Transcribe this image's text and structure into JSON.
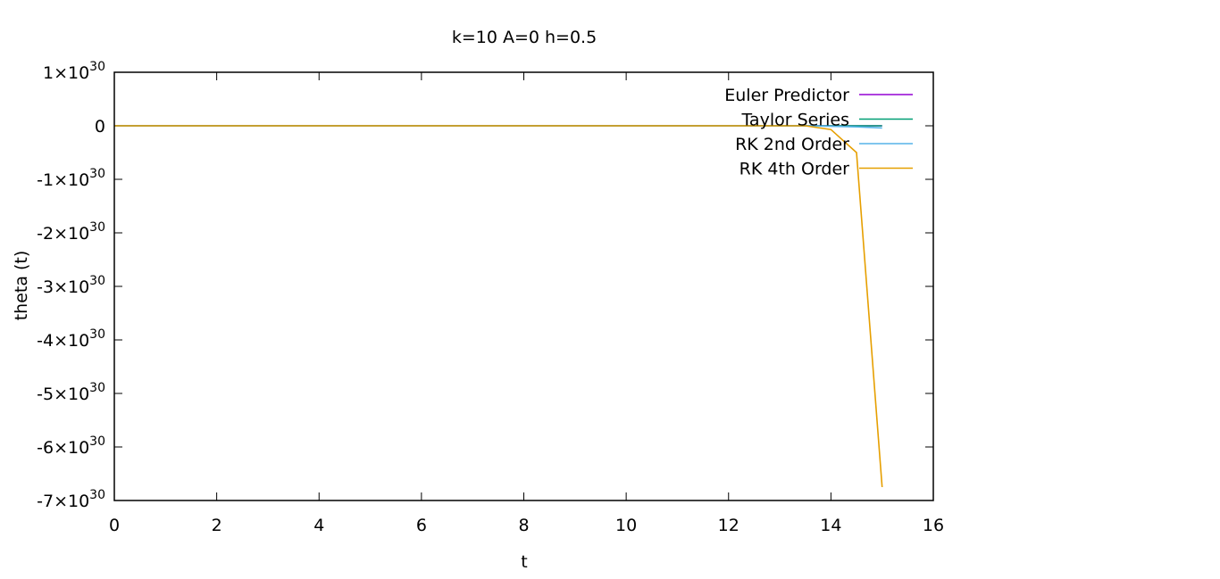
{
  "chart_data": {
    "type": "line",
    "title": "k=10 A=0 h=0.5",
    "xlabel": "t",
    "ylabel": "theta (t)",
    "xlim": [
      0,
      16
    ],
    "ylim": [
      -7e+30,
      1e+30
    ],
    "x_ticks": [
      {
        "value": 0,
        "label": "0"
      },
      {
        "value": 2,
        "label": "2"
      },
      {
        "value": 4,
        "label": "4"
      },
      {
        "value": 6,
        "label": "6"
      },
      {
        "value": 8,
        "label": "8"
      },
      {
        "value": 10,
        "label": "10"
      },
      {
        "value": 12,
        "label": "12"
      },
      {
        "value": 14,
        "label": "14"
      },
      {
        "value": 16,
        "label": "16"
      }
    ],
    "y_ticks": [
      {
        "value": 1e+30,
        "mantissa": "1",
        "exponent": "30"
      },
      {
        "value": 0,
        "mantissa": "0",
        "exponent": ""
      },
      {
        "value": -1e+30,
        "mantissa": "-1",
        "exponent": "30"
      },
      {
        "value": -2e+30,
        "mantissa": "-2",
        "exponent": "30"
      },
      {
        "value": -3e+30,
        "mantissa": "-3",
        "exponent": "30"
      },
      {
        "value": -4e+30,
        "mantissa": "-4",
        "exponent": "30"
      },
      {
        "value": -5e+30,
        "mantissa": "-5",
        "exponent": "30"
      },
      {
        "value": -6e+30,
        "mantissa": "-6",
        "exponent": "30"
      },
      {
        "value": -7e+30,
        "mantissa": "-7",
        "exponent": "30"
      }
    ],
    "legend_position": "top-right",
    "series": [
      {
        "name": "Euler Predictor",
        "color": "#9400d3",
        "x": [
          0,
          15
        ],
        "y": [
          0,
          0
        ]
      },
      {
        "name": "Taylor Series",
        "color": "#009e73",
        "x": [
          0,
          15
        ],
        "y": [
          0,
          0
        ]
      },
      {
        "name": "RK 2nd Order",
        "color": "#56b4e9",
        "x": [
          0,
          13.5,
          14,
          14.5,
          15
        ],
        "y": [
          0,
          0,
          -1e+28,
          -2e+28,
          -4e+28
        ]
      },
      {
        "name": "RK 4th Order",
        "color": "#e69f00",
        "x": [
          0,
          13.5,
          14,
          14.5,
          15
        ],
        "y": [
          0,
          0,
          -7e+28,
          -5e+29,
          -6.75e+30
        ]
      }
    ]
  }
}
